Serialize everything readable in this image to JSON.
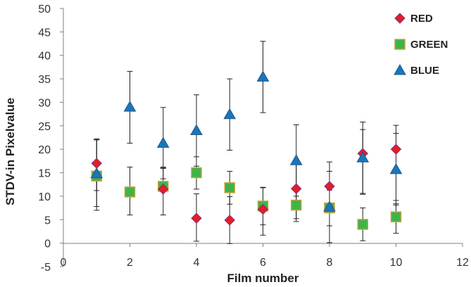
{
  "chart_data": {
    "type": "scatter",
    "title": "",
    "xlabel": "Film number",
    "ylabel": "STDV-in Pixelvalue",
    "xlim": [
      0,
      12
    ],
    "ylim": [
      -5,
      50
    ],
    "x_ticks": [
      0,
      2,
      4,
      6,
      8,
      10,
      12
    ],
    "y_ticks": [
      -5,
      0,
      5,
      10,
      15,
      20,
      25,
      30,
      35,
      40,
      45,
      50
    ],
    "grid": false,
    "legend": "top-right",
    "error_bars": true,
    "series": [
      {
        "name": "RED",
        "marker": "diamond",
        "color": "#e31e24",
        "x": [
          1,
          3,
          4,
          5,
          6,
          7,
          8,
          9,
          10
        ],
        "y": [
          17,
          11.5,
          5.3,
          4.9,
          7.2,
          11.6,
          12.1,
          19.1,
          20
        ],
        "err_low": [
          7.8,
          16.2,
          0.4,
          -0.1,
          1.7,
          5.2,
          0.1,
          10.4,
          8.4
        ],
        "err_high": [
          22.2,
          16.1,
          10.5,
          9.9,
          11.8,
          17.3,
          17.3,
          24.2,
          23.4
        ]
      },
      {
        "name": "GREEN",
        "marker": "square",
        "color": "#3bb54a",
        "x": [
          1,
          2,
          3,
          4,
          5,
          6,
          7,
          8,
          9,
          10
        ],
        "y": [
          14.3,
          10.9,
          12.1,
          15,
          11.8,
          7.9,
          8.1,
          7.5,
          4,
          5.6
        ],
        "err_low": [
          7,
          6,
          6,
          11.5,
          8.3,
          3.9,
          4.6,
          3.7,
          0.5,
          2.1
        ],
        "err_high": [
          22,
          16.2,
          15.9,
          18.4,
          15.3,
          11.9,
          11.6,
          11.3,
          7.5,
          9.1
        ]
      },
      {
        "name": "BLUE",
        "marker": "triangle",
        "color": "#1b75bb",
        "x": [
          1,
          2,
          3,
          4,
          5,
          6,
          7,
          8,
          9,
          10
        ],
        "y": [
          14.8,
          29,
          21.3,
          24,
          27.4,
          35.4,
          17.6,
          7.7,
          18.2,
          15.7
        ],
        "err_low": [
          11.2,
          21.3,
          13.7,
          16.4,
          19.8,
          27.8,
          10,
          0.1,
          10.6,
          8.1
        ],
        "err_high": [
          22,
          36.6,
          28.9,
          31.6,
          35,
          43,
          25.2,
          15.3,
          25.8,
          25.1
        ]
      }
    ]
  }
}
